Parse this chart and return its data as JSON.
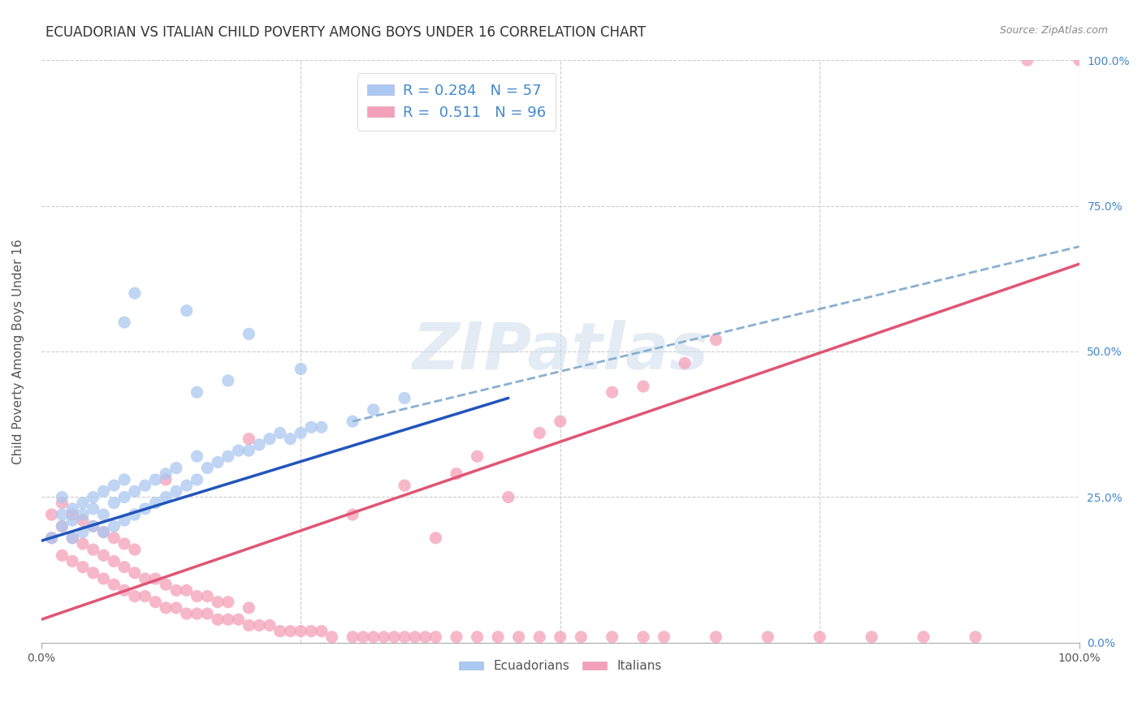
{
  "title": "ECUADORIAN VS ITALIAN CHILD POVERTY AMONG BOYS UNDER 16 CORRELATION CHART",
  "source": "Source: ZipAtlas.com",
  "ylabel": "Child Poverty Among Boys Under 16",
  "xlim": [
    0,
    1
  ],
  "ylim": [
    0,
    1
  ],
  "ecuadorian_color": "#aac8f0",
  "italian_color": "#f4a0b8",
  "ecuadorian_line_color": "#2255bb",
  "italian_line_color": "#e05575",
  "dashed_line_color": "#8ab0d0",
  "R_ecu": 0.284,
  "N_ecu": 57,
  "R_ita": 0.511,
  "N_ita": 96,
  "watermark": "ZIPatlas",
  "background_color": "#ffffff",
  "grid_color": "#cccccc",
  "legend_text_color": "#4488cc",
  "title_fontsize": 12,
  "axis_label_fontsize": 11,
  "tick_fontsize": 10,
  "ecu_x": [
    0.01,
    0.02,
    0.02,
    0.02,
    0.03,
    0.03,
    0.03,
    0.04,
    0.04,
    0.04,
    0.05,
    0.05,
    0.05,
    0.06,
    0.06,
    0.06,
    0.07,
    0.07,
    0.07,
    0.08,
    0.08,
    0.08,
    0.09,
    0.09,
    0.1,
    0.1,
    0.11,
    0.11,
    0.12,
    0.12,
    0.13,
    0.13,
    0.14,
    0.15,
    0.15,
    0.16,
    0.17,
    0.18,
    0.19,
    0.2,
    0.21,
    0.22,
    0.23,
    0.24,
    0.25,
    0.26,
    0.27,
    0.3,
    0.32,
    0.35,
    0.09,
    0.14,
    0.2,
    0.25,
    0.15,
    0.18,
    0.08
  ],
  "ecu_y": [
    0.18,
    0.2,
    0.22,
    0.25,
    0.18,
    0.21,
    0.23,
    0.19,
    0.22,
    0.24,
    0.2,
    0.23,
    0.25,
    0.19,
    0.22,
    0.26,
    0.2,
    0.24,
    0.27,
    0.21,
    0.25,
    0.28,
    0.22,
    0.26,
    0.23,
    0.27,
    0.24,
    0.28,
    0.25,
    0.29,
    0.26,
    0.3,
    0.27,
    0.28,
    0.32,
    0.3,
    0.31,
    0.32,
    0.33,
    0.33,
    0.34,
    0.35,
    0.36,
    0.35,
    0.36,
    0.37,
    0.37,
    0.38,
    0.4,
    0.42,
    0.6,
    0.57,
    0.53,
    0.47,
    0.43,
    0.45,
    0.55
  ],
  "ita_x": [
    0.01,
    0.01,
    0.02,
    0.02,
    0.02,
    0.03,
    0.03,
    0.03,
    0.04,
    0.04,
    0.04,
    0.05,
    0.05,
    0.05,
    0.06,
    0.06,
    0.06,
    0.07,
    0.07,
    0.07,
    0.08,
    0.08,
    0.08,
    0.09,
    0.09,
    0.09,
    0.1,
    0.1,
    0.11,
    0.11,
    0.12,
    0.12,
    0.13,
    0.13,
    0.14,
    0.14,
    0.15,
    0.15,
    0.16,
    0.16,
    0.17,
    0.17,
    0.18,
    0.18,
    0.19,
    0.2,
    0.2,
    0.21,
    0.22,
    0.23,
    0.24,
    0.25,
    0.26,
    0.27,
    0.28,
    0.3,
    0.31,
    0.32,
    0.33,
    0.34,
    0.35,
    0.36,
    0.37,
    0.38,
    0.4,
    0.42,
    0.44,
    0.46,
    0.48,
    0.5,
    0.52,
    0.55,
    0.58,
    0.6,
    0.65,
    0.7,
    0.75,
    0.8,
    0.85,
    0.9,
    0.35,
    0.42,
    0.5,
    0.55,
    0.62,
    0.3,
    0.4,
    0.48,
    0.58,
    0.65,
    0.95,
    1.0,
    0.38,
    0.45,
    0.12,
    0.2
  ],
  "ita_y": [
    0.18,
    0.22,
    0.15,
    0.2,
    0.24,
    0.14,
    0.18,
    0.22,
    0.13,
    0.17,
    0.21,
    0.12,
    0.16,
    0.2,
    0.11,
    0.15,
    0.19,
    0.1,
    0.14,
    0.18,
    0.09,
    0.13,
    0.17,
    0.08,
    0.12,
    0.16,
    0.08,
    0.11,
    0.07,
    0.11,
    0.06,
    0.1,
    0.06,
    0.09,
    0.05,
    0.09,
    0.05,
    0.08,
    0.05,
    0.08,
    0.04,
    0.07,
    0.04,
    0.07,
    0.04,
    0.03,
    0.06,
    0.03,
    0.03,
    0.02,
    0.02,
    0.02,
    0.02,
    0.02,
    0.01,
    0.01,
    0.01,
    0.01,
    0.01,
    0.01,
    0.01,
    0.01,
    0.01,
    0.01,
    0.01,
    0.01,
    0.01,
    0.01,
    0.01,
    0.01,
    0.01,
    0.01,
    0.01,
    0.01,
    0.01,
    0.01,
    0.01,
    0.01,
    0.01,
    0.01,
    0.27,
    0.32,
    0.38,
    0.43,
    0.48,
    0.22,
    0.29,
    0.36,
    0.44,
    0.52,
    1.0,
    1.0,
    0.18,
    0.25,
    0.28,
    0.35
  ],
  "ecu_line_x0": 0.0,
  "ecu_line_y0": 0.175,
  "ecu_line_x1": 0.45,
  "ecu_line_y1": 0.42,
  "ita_line_x0": 0.0,
  "ita_line_y0": 0.04,
  "ita_line_x1": 1.0,
  "ita_line_y1": 0.65,
  "dash_line_x0": 0.3,
  "dash_line_y0": 0.38,
  "dash_line_x1": 1.0,
  "dash_line_y1": 0.68
}
